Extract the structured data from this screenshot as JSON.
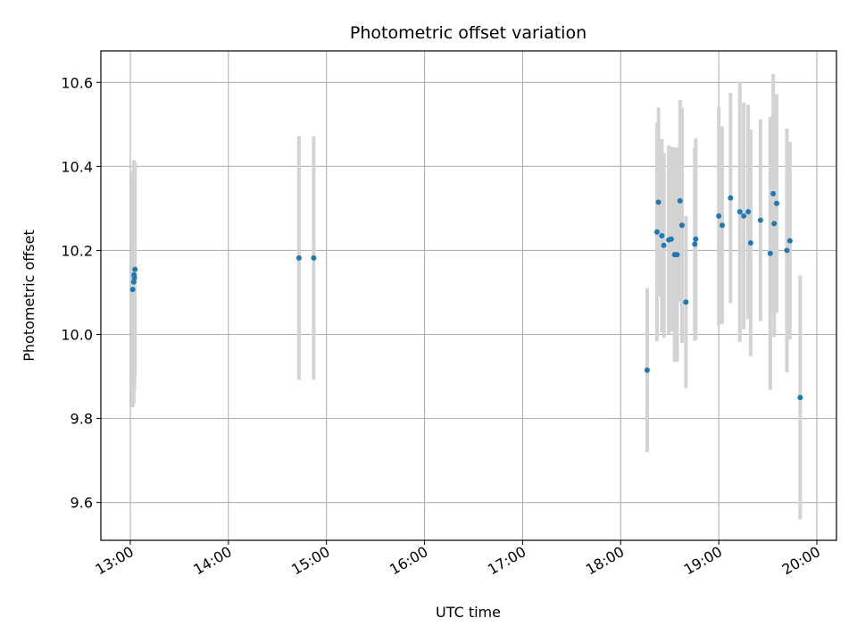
{
  "chart_data": {
    "type": "scatter",
    "title": "Photometric offset variation",
    "xlabel": "UTC time",
    "ylabel": "Photometric offset",
    "x_unit": "UTC time of day (hours)",
    "xlim": [
      12.7,
      20.2
    ],
    "ylim": [
      9.51,
      10.675
    ],
    "xticks": [
      13,
      14,
      15,
      16,
      17,
      18,
      19,
      20
    ],
    "xtick_labels": [
      "13:00",
      "14:00",
      "15:00",
      "16:00",
      "17:00",
      "18:00",
      "19:00",
      "20:00"
    ],
    "yticks": [
      9.6,
      9.8,
      10.0,
      10.2,
      10.4,
      10.6
    ],
    "ytick_labels": [
      "9.6",
      "9.8",
      "10.0",
      "10.2",
      "10.4",
      "10.6"
    ],
    "grid": true,
    "point_color": "#1f77b4",
    "errorbar_color": "#d3d3d3",
    "series": [
      {
        "points": [
          {
            "x": 13.025,
            "y": 10.107,
            "err": 0.28
          },
          {
            "x": 13.035,
            "y": 10.125,
            "err": 0.29
          },
          {
            "x": 13.038,
            "y": 10.142,
            "err": 0.26
          },
          {
            "x": 13.042,
            "y": 10.135,
            "err": 0.27
          },
          {
            "x": 13.048,
            "y": 10.155,
            "err": 0.255
          },
          {
            "x": 14.72,
            "y": 10.182,
            "err": 0.29
          },
          {
            "x": 14.87,
            "y": 10.182,
            "err": 0.29
          },
          {
            "x": 18.27,
            "y": 9.915,
            "err": 0.195
          },
          {
            "x": 18.37,
            "y": 10.244,
            "err": 0.26
          },
          {
            "x": 18.385,
            "y": 10.315,
            "err": 0.225
          },
          {
            "x": 18.42,
            "y": 10.235,
            "err": 0.23
          },
          {
            "x": 18.44,
            "y": 10.212,
            "err": 0.22
          },
          {
            "x": 18.49,
            "y": 10.225,
            "err": 0.225
          },
          {
            "x": 18.515,
            "y": 10.227,
            "err": 0.22
          },
          {
            "x": 18.55,
            "y": 10.19,
            "err": 0.255
          },
          {
            "x": 18.575,
            "y": 10.19,
            "err": 0.255
          },
          {
            "x": 18.605,
            "y": 10.318,
            "err": 0.24
          },
          {
            "x": 18.625,
            "y": 10.26,
            "err": 0.28
          },
          {
            "x": 18.665,
            "y": 10.077,
            "err": 0.205
          },
          {
            "x": 18.755,
            "y": 10.215,
            "err": 0.23
          },
          {
            "x": 18.765,
            "y": 10.227,
            "err": 0.24
          },
          {
            "x": 19.0,
            "y": 10.282,
            "err": 0.26
          },
          {
            "x": 19.035,
            "y": 10.26,
            "err": 0.235
          },
          {
            "x": 19.12,
            "y": 10.325,
            "err": 0.25
          },
          {
            "x": 19.215,
            "y": 10.292,
            "err": 0.31
          },
          {
            "x": 19.255,
            "y": 10.282,
            "err": 0.27
          },
          {
            "x": 19.3,
            "y": 10.292,
            "err": 0.255
          },
          {
            "x": 19.325,
            "y": 10.218,
            "err": 0.27
          },
          {
            "x": 19.425,
            "y": 10.272,
            "err": 0.24
          },
          {
            "x": 19.525,
            "y": 10.193,
            "err": 0.325
          },
          {
            "x": 19.555,
            "y": 10.335,
            "err": 0.285
          },
          {
            "x": 19.565,
            "y": 10.264,
            "err": 0.27
          },
          {
            "x": 19.59,
            "y": 10.312,
            "err": 0.26
          },
          {
            "x": 19.695,
            "y": 10.2,
            "err": 0.29
          },
          {
            "x": 19.725,
            "y": 10.223,
            "err": 0.235
          },
          {
            "x": 19.83,
            "y": 9.85,
            "err": 0.29
          }
        ]
      }
    ]
  }
}
